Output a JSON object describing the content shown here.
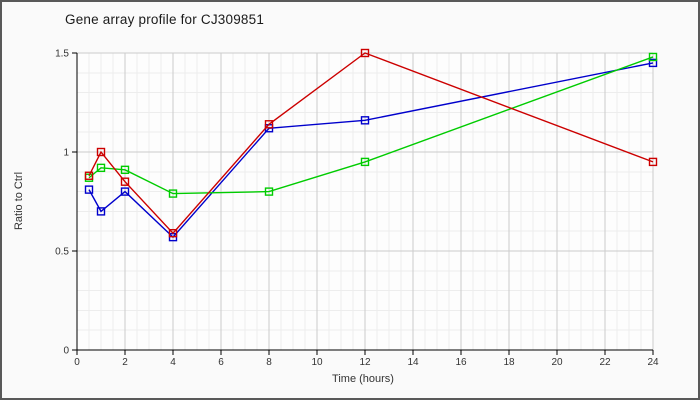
{
  "title": "Gene array profile for CJ309851",
  "window": {
    "background": "#fafafa",
    "border_color": "#595959"
  },
  "chart_data": {
    "type": "line",
    "title": "Gene array profile for CJ309851",
    "xlabel": "Time (hours)",
    "ylabel": "Ratio to Ctrl",
    "x": [
      0.5,
      1,
      2,
      4,
      8,
      12,
      24
    ],
    "series": [
      {
        "name": "blue-series",
        "color": "#0000cc",
        "values": [
          0.81,
          0.7,
          0.8,
          0.57,
          1.12,
          1.16,
          1.45
        ]
      },
      {
        "name": "green-series",
        "color": "#00cc00",
        "values": [
          0.87,
          0.92,
          0.91,
          0.79,
          0.8,
          0.95,
          1.48
        ]
      },
      {
        "name": "red-series",
        "color": "#cc0000",
        "values": [
          0.88,
          1.0,
          0.85,
          0.59,
          1.14,
          1.5,
          0.95
        ]
      }
    ],
    "xlim": [
      0,
      24
    ],
    "ylim": [
      0,
      1.5
    ],
    "x_ticks": [
      0,
      2,
      4,
      6,
      8,
      10,
      12,
      14,
      16,
      18,
      20,
      22,
      24
    ],
    "x_tick_labels": [
      "0",
      "2",
      "4",
      "6",
      "8",
      "10",
      "12",
      "14",
      "16",
      "18",
      "20",
      "22",
      "24"
    ],
    "y_ticks": [
      0,
      0.5,
      1,
      1.5
    ],
    "y_tick_labels": [
      "0",
      "0.5",
      "1",
      "1.5"
    ],
    "x_minor_step": 0.5,
    "y_minor_step": 0.1,
    "grid": true,
    "legend_position": "none",
    "marker": "open-square",
    "colors": {
      "plot_background": "#fdfdfd",
      "major_grid": "#cccccc",
      "minor_grid": "#ededed",
      "axis": "#000000",
      "tick_text": "#333333"
    }
  }
}
